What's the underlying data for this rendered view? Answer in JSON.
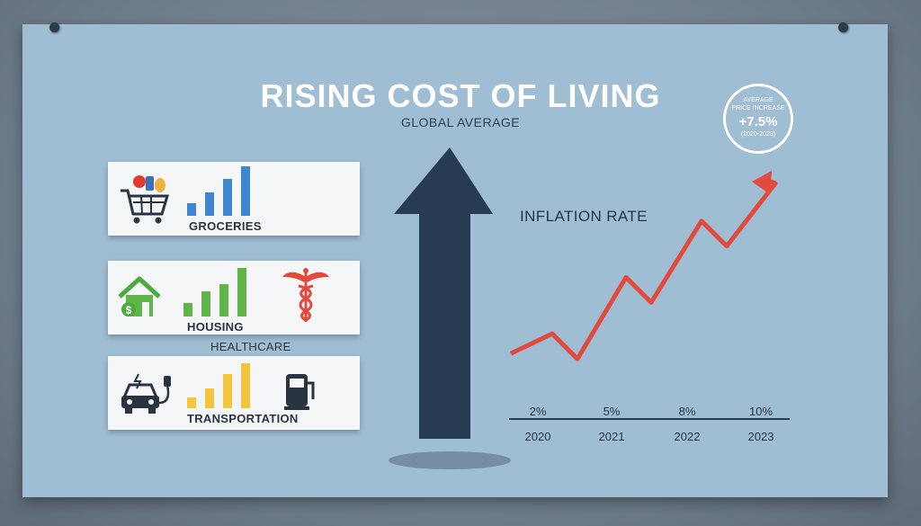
{
  "title": "RISING COST OF LIVING",
  "subtitle": "GLOBAL AVERAGE",
  "badge": {
    "line1": "AVERAGE",
    "line2": "PRICE INCREASE",
    "value": "+7.5%",
    "range": "(2020-2023)"
  },
  "categories": {
    "groceries": "GROCERIES",
    "housing": "HOUSING",
    "healthcare": "HEALTHCARE",
    "transportation": "TRANSPORTATION"
  },
  "colors": {
    "groceries": "#3e86cf",
    "housing": "#5fb548",
    "transportation": "#f2c53d",
    "line": "#e24a3b",
    "arrow": "#253c52"
  },
  "chart_data": {
    "type": "line",
    "title": "INFLATION RATE",
    "categories": [
      "2020",
      "2021",
      "2022",
      "2023"
    ],
    "value_labels": [
      "2%",
      "5%",
      "8%",
      "10%"
    ],
    "values": [
      2,
      5,
      8,
      10
    ]
  }
}
